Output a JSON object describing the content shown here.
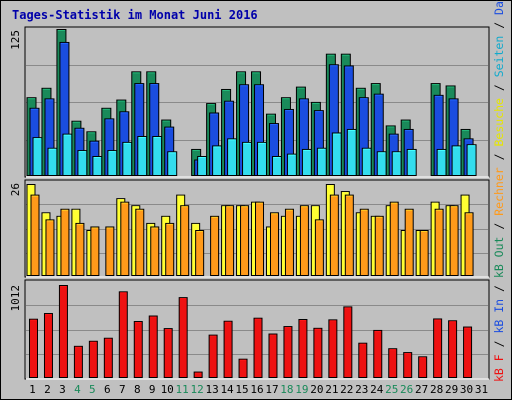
{
  "title": "Tages-Statistik im Monat Juni 2016",
  "colors": {
    "background": "#c0c0c0",
    "title": "#0000aa",
    "hits": "#1a8a5a",
    "files": "#1a4de0",
    "pages": "#33ddee",
    "visits": "#ffff33",
    "sites": "#ff9a1a",
    "kbytes": "#ee1111",
    "weekend_label": "#1a8a5a",
    "weekday_label": "#000000"
  },
  "right_legend": {
    "top": [
      "Anfragen",
      "/",
      "Dateien",
      "/",
      "Seiten"
    ],
    "middle": [
      "Besuche",
      "/",
      "Rechner"
    ],
    "bottom": [
      "kB F",
      "/",
      "kB In",
      "/",
      "kB Out"
    ],
    "full_text": "kB F / kB In / kB Out / Rechner / Besuche / Seiten / Dateien / Anfragen"
  },
  "chart_data": {
    "type": "bar",
    "title": "Tages-Statistik im Monat Juni 2016",
    "categories": [
      "1",
      "2",
      "3",
      "4",
      "5",
      "6",
      "7",
      "8",
      "9",
      "10",
      "11",
      "12",
      "13",
      "14",
      "15",
      "16",
      "17",
      "18",
      "19",
      "20",
      "21",
      "22",
      "23",
      "24",
      "25",
      "26",
      "27",
      "28",
      "29",
      "30",
      "31"
    ],
    "weekend_days": [
      "4",
      "5",
      "11",
      "12",
      "18",
      "19",
      "25",
      "26"
    ],
    "panels": [
      {
        "name": "top",
        "ymax_label": "125",
        "ylim": [
          0,
          125
        ],
        "series": [
          {
            "name": "Anfragen",
            "values": [
              67,
              75,
              125,
              47,
              38,
              58,
              65,
              89,
              89,
              48,
              0,
              23,
              62,
              74,
              89,
              89,
              53,
              67,
              76,
              63,
              104,
              104,
              75,
              79,
              43,
              48,
              0,
              79,
              77,
              40,
              0
            ]
          },
          {
            "name": "Dateien",
            "values": [
              58,
              66,
              114,
              41,
              30,
              49,
              55,
              79,
              79,
              42,
              0,
              14,
              54,
              64,
              78,
              78,
              45,
              57,
              66,
              56,
              95,
              94,
              67,
              70,
              36,
              40,
              0,
              69,
              66,
              32,
              0
            ]
          },
          {
            "name": "Seiten",
            "values": [
              33,
              24,
              36,
              22,
              17,
              22,
              29,
              34,
              34,
              21,
              0,
              17,
              26,
              32,
              29,
              29,
              17,
              19,
              23,
              24,
              37,
              40,
              24,
              21,
              21,
              23,
              0,
              23,
              26,
              27,
              0
            ]
          }
        ]
      },
      {
        "name": "middle",
        "ymax_label": "26",
        "ylim": [
          0,
          26
        ],
        "series": [
          {
            "name": "Besuche",
            "values": [
              26,
              18,
              17,
              19,
              13,
              0,
              22,
              20,
              15,
              17,
              23,
              15,
              0,
              20,
              20,
              21,
              14,
              17,
              17,
              20,
              26,
              24,
              18,
              17,
              20,
              13,
              13,
              21,
              20,
              23,
              0
            ]
          },
          {
            "name": "Rechner",
            "values": [
              23,
              16,
              19,
              15,
              14,
              14,
              21,
              19,
              14,
              15,
              20,
              13,
              17,
              20,
              20,
              21,
              18,
              19,
              20,
              16,
              23,
              23,
              19,
              17,
              21,
              19,
              13,
              19,
              20,
              18,
              0
            ]
          }
        ]
      },
      {
        "name": "bottom",
        "ymax_label": "1012",
        "ylim": [
          0,
          1012
        ],
        "series": [
          {
            "name": "kB F",
            "values": [
              0,
              0,
              0,
              0,
              0,
              0,
              0,
              0,
              0,
              0,
              0,
              0,
              0,
              0,
              0,
              0,
              0,
              0,
              0,
              0,
              0,
              0,
              0,
              0,
              0,
              0,
              0,
              0,
              0,
              0,
              0
            ]
          },
          {
            "name": "kB In",
            "values": [
              0,
              0,
              0,
              0,
              0,
              0,
              0,
              0,
              0,
              0,
              0,
              0,
              0,
              0,
              0,
              0,
              0,
              0,
              0,
              0,
              0,
              0,
              0,
              0,
              0,
              0,
              0,
              0,
              0,
              0,
              0
            ]
          },
          {
            "name": "kB Out",
            "values": [
              645,
              707,
              1012,
              350,
              405,
              438,
              943,
              620,
              680,
              543,
              880,
              70,
              472,
              623,
              210,
              656,
              484,
              565,
              642,
              546,
              638,
              779,
              384,
              523,
              324,
              282,
              236,
              648,
              628,
              560,
              0
            ]
          }
        ]
      }
    ]
  }
}
